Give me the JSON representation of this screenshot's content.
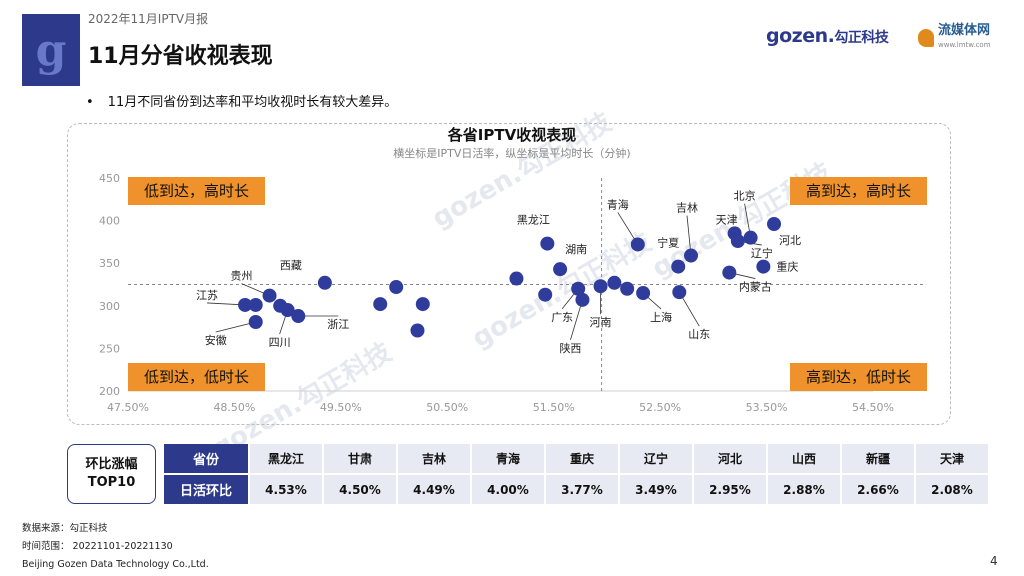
{
  "header": {
    "report_title": "2022年11月IPTV月报",
    "page_title": "11月分省收视表现",
    "logo_letter": "g",
    "brand_gozen": "gozen.",
    "brand_gozen_cn": "勾正科技",
    "brand_lmt": "流媒体网",
    "brand_lmt_url": "www.lmtw.com"
  },
  "bullet_text": "11月不同省份到达率和平均收视时长有较大差异。",
  "watermark": "gozen.勾正科技",
  "chart_data": {
    "type": "scatter",
    "title": "各省IPTV收视表现",
    "subtitle": "横坐标是IPTV日活率，纵坐标是平均时长（分钟)",
    "xlabel": "IPTV日活率",
    "ylabel": "平均时长（分钟)",
    "xlim": [
      47.5,
      54.5
    ],
    "ylim": [
      200,
      450
    ],
    "x_ticks": [
      47.5,
      48.5,
      49.5,
      50.5,
      51.5,
      52.5,
      53.5,
      54.5
    ],
    "x_tick_labels": [
      "47.50%",
      "48.50%",
      "49.50%",
      "50.50%",
      "51.50%",
      "52.50%",
      "53.50%",
      "54.50%"
    ],
    "y_ticks": [
      200,
      250,
      300,
      350,
      400,
      450
    ],
    "x_ref": 51.95,
    "y_ref": 325,
    "dot_color": "#2f3c9c",
    "quadrants": {
      "top_left": "低到达，高时长",
      "top_right": "高到达，高时长",
      "bottom_left": "低到达，低时长",
      "bottom_right": "高到达，低时长"
    },
    "quadrant_color": "#f0922b",
    "points": [
      {
        "x": 48.7,
        "y": 301
      },
      {
        "x": 48.83,
        "y": 312,
        "label": "贵州"
      },
      {
        "x": 48.7,
        "y": 281,
        "label": "安徽"
      },
      {
        "x": 48.6,
        "y": 301,
        "label": "江苏"
      },
      {
        "x": 48.93,
        "y": 300
      },
      {
        "x": 49.0,
        "y": 295,
        "label": "四川"
      },
      {
        "x": 49.1,
        "y": 288,
        "label": "浙江"
      },
      {
        "x": 49.35,
        "y": 327,
        "label": "西藏"
      },
      {
        "x": 49.87,
        "y": 302
      },
      {
        "x": 50.02,
        "y": 322
      },
      {
        "x": 50.22,
        "y": 271
      },
      {
        "x": 50.27,
        "y": 302
      },
      {
        "x": 51.15,
        "y": 332
      },
      {
        "x": 51.42,
        "y": 313
      },
      {
        "x": 51.44,
        "y": 373,
        "label": "黑龙江"
      },
      {
        "x": 51.56,
        "y": 343,
        "label": "湖南"
      },
      {
        "x": 51.73,
        "y": 320,
        "label": "广东"
      },
      {
        "x": 51.77,
        "y": 307,
        "label": "陕西"
      },
      {
        "x": 51.94,
        "y": 323,
        "label": "河南"
      },
      {
        "x": 52.07,
        "y": 327
      },
      {
        "x": 52.19,
        "y": 320
      },
      {
        "x": 52.29,
        "y": 372,
        "label": "青海"
      },
      {
        "x": 52.34,
        "y": 315,
        "label": "上海"
      },
      {
        "x": 52.67,
        "y": 346,
        "label": "宁夏"
      },
      {
        "x": 52.68,
        "y": 316,
        "label": "山东"
      },
      {
        "x": 52.79,
        "y": 359,
        "label": "吉林"
      },
      {
        "x": 53.15,
        "y": 339,
        "label": "内蒙古"
      },
      {
        "x": 53.2,
        "y": 385,
        "label": "天津"
      },
      {
        "x": 53.23,
        "y": 376,
        "label": "辽宁"
      },
      {
        "x": 53.35,
        "y": 380,
        "label": "北京"
      },
      {
        "x": 53.47,
        "y": 346,
        "label": "重庆"
      },
      {
        "x": 53.57,
        "y": 396,
        "label": "河北"
      }
    ]
  },
  "table": {
    "title_line1": "环比涨幅",
    "title_line2": "TOP10",
    "row1_label": "省份",
    "row2_label": "日活环比",
    "provinces": [
      "黑龙江",
      "甘肃",
      "吉林",
      "青海",
      "重庆",
      "辽宁",
      "河北",
      "山西",
      "新疆",
      "天津"
    ],
    "values": [
      "4.53%",
      "4.50%",
      "4.49%",
      "4.00%",
      "3.77%",
      "3.49%",
      "2.95%",
      "2.88%",
      "2.66%",
      "2.08%"
    ]
  },
  "footer": {
    "source": "数据来源：勾正科技",
    "range": "时间范围： 20221101-20221130",
    "company": "Beijing Gozen Data Technology Co.,Ltd."
  },
  "page_number": "4"
}
